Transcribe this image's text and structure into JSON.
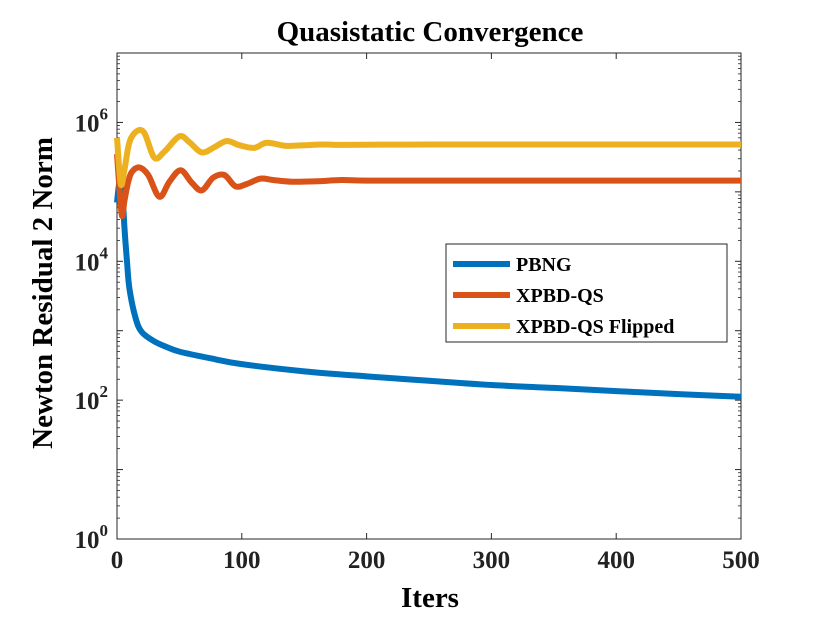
{
  "chart_data": {
    "type": "line",
    "title": "Quasistatic Convergence",
    "xlabel": "Iters",
    "ylabel": "Newton Residual 2 Norm",
    "xlim": [
      0,
      500
    ],
    "ylim": [
      1,
      10000000
    ],
    "yscale": "log",
    "xticks": [
      "0",
      "100",
      "200",
      "300",
      "400",
      "500"
    ],
    "yticks": [
      {
        "base": "10",
        "exp": "0",
        "value": 1
      },
      {
        "base": "10",
        "exp": "2",
        "value": 100
      },
      {
        "base": "10",
        "exp": "4",
        "value": 10000
      },
      {
        "base": "10",
        "exp": "6",
        "value": 1000000
      }
    ],
    "legend_position": "center-right",
    "series": [
      {
        "name": "PBNG",
        "color": "#0072BD",
        "x": [
          0,
          2,
          4,
          6,
          8,
          10,
          15,
          20,
          30,
          40,
          50,
          75,
          100,
          150,
          200,
          250,
          300,
          350,
          400,
          450,
          500
        ],
        "y": [
          70000,
          140000,
          120000,
          30000,
          10000,
          4000,
          1500,
          950,
          700,
          580,
          500,
          400,
          330,
          260,
          220,
          190,
          165,
          150,
          135,
          122,
          112
        ]
      },
      {
        "name": "XPBD-QS",
        "color": "#D95319",
        "x": [
          0,
          2,
          4,
          6,
          9,
          12,
          18,
          25,
          34,
          42,
          51,
          60,
          68,
          77,
          86,
          95,
          104,
          115,
          125,
          140,
          160,
          180,
          200,
          250,
          300,
          400,
          500
        ],
        "y": [
          350000,
          110000,
          45000,
          75000,
          140000,
          195000,
          225000,
          175000,
          85000,
          140000,
          205000,
          135000,
          105000,
          160000,
          175000,
          120000,
          130000,
          155000,
          148000,
          140000,
          142000,
          148000,
          145000,
          145000,
          145000,
          145000,
          145000
        ]
      },
      {
        "name": "XPBD-QS Flipped",
        "color": "#EDB120",
        "x": [
          0,
          3,
          6,
          10,
          16,
          22,
          30,
          38,
          50,
          58,
          68,
          78,
          88,
          98,
          110,
          120,
          135,
          150,
          165,
          180,
          200,
          250,
          300,
          400,
          500
        ],
        "y": [
          600000,
          130000,
          210000,
          520000,
          750000,
          700000,
          310000,
          380000,
          630000,
          520000,
          370000,
          440000,
          540000,
          470000,
          430000,
          510000,
          460000,
          470000,
          480000,
          475000,
          478000,
          480000,
          480000,
          480000,
          480000
        ]
      }
    ]
  }
}
